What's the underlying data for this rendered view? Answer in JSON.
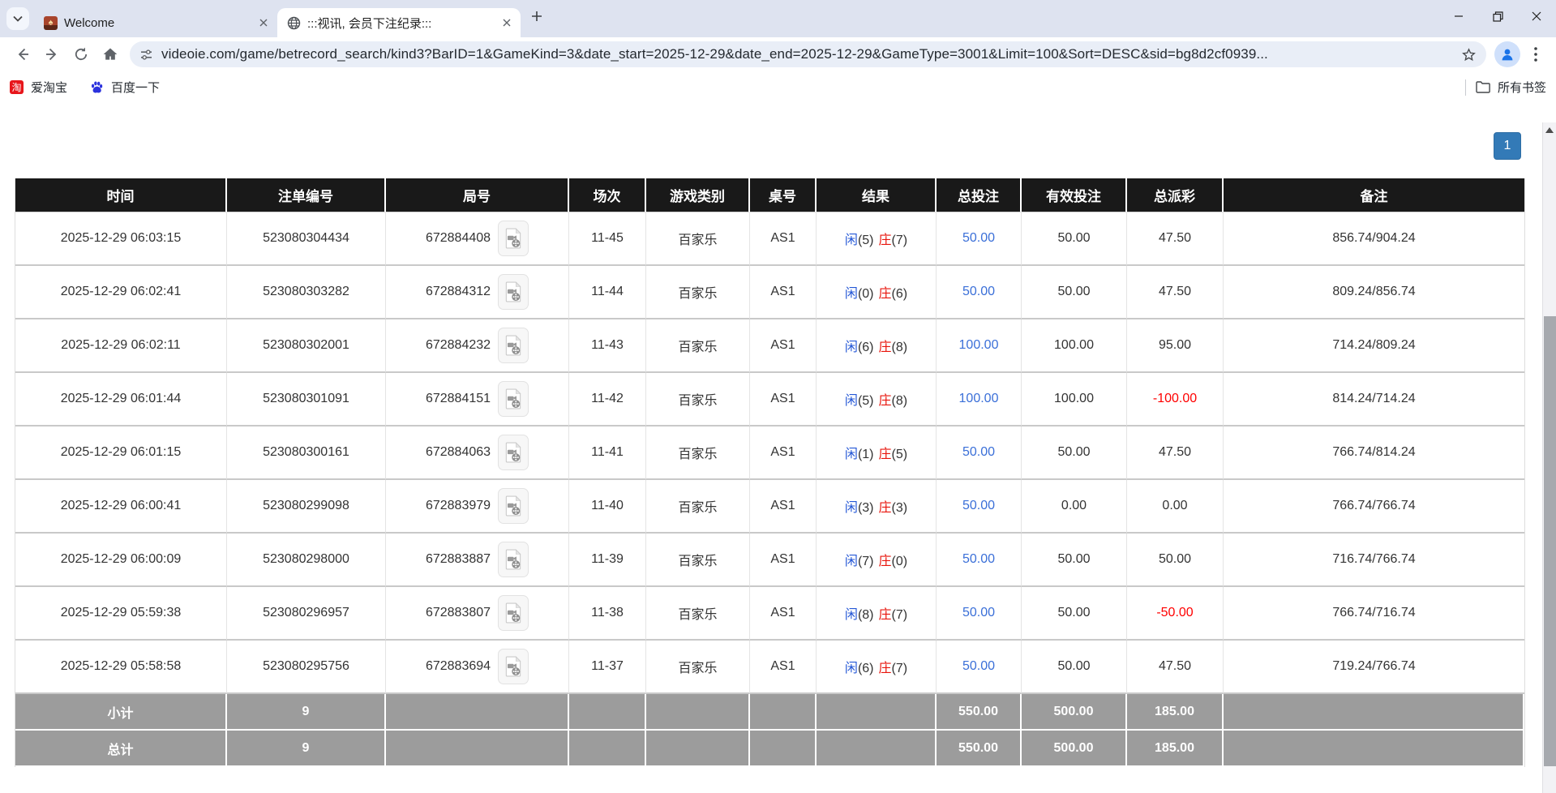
{
  "browser": {
    "tabs": [
      {
        "title": "Welcome"
      },
      {
        "title": ":::视讯, 会员下注纪录:::"
      }
    ],
    "url": "videoie.com/game/betrecord_search/kind3?BarID=1&GameKind=3&date_start=2025-12-29&date_end=2025-12-29&GameType=3001&Limit=100&Sort=DESC&sid=bg8d2cf0939...",
    "bookmarks_bar": {
      "items": [
        {
          "label": "爱淘宝",
          "glyph": "淘"
        },
        {
          "label": "百度一下"
        }
      ],
      "all_bookmarks_label": "所有书签"
    }
  },
  "page": {
    "pagination": {
      "current_page": "1"
    },
    "table": {
      "headers": [
        "时间",
        "注单编号",
        "局号",
        "场次",
        "游戏类别",
        "桌号",
        "结果",
        "总投注",
        "有效投注",
        "总派彩",
        "备注"
      ],
      "result_labels": {
        "player": "闲",
        "banker": "庄"
      },
      "rows": [
        {
          "time": "2025-12-29 06:03:15",
          "bet_id": "523080304434",
          "round": "672884408",
          "session": "11-45",
          "game": "百家乐",
          "table": "AS1",
          "player": "5",
          "banker": "7",
          "total_bet": "50.00",
          "valid_bet": "50.00",
          "payout": "47.50",
          "remark": "856.74/904.24"
        },
        {
          "time": "2025-12-29 06:02:41",
          "bet_id": "523080303282",
          "round": "672884312",
          "session": "11-44",
          "game": "百家乐",
          "table": "AS1",
          "player": "0",
          "banker": "6",
          "total_bet": "50.00",
          "valid_bet": "50.00",
          "payout": "47.50",
          "remark": "809.24/856.74"
        },
        {
          "time": "2025-12-29 06:02:11",
          "bet_id": "523080302001",
          "round": "672884232",
          "session": "11-43",
          "game": "百家乐",
          "table": "AS1",
          "player": "6",
          "banker": "8",
          "total_bet": "100.00",
          "valid_bet": "100.00",
          "payout": "95.00",
          "remark": "714.24/809.24"
        },
        {
          "time": "2025-12-29 06:01:44",
          "bet_id": "523080301091",
          "round": "672884151",
          "session": "11-42",
          "game": "百家乐",
          "table": "AS1",
          "player": "5",
          "banker": "8",
          "total_bet": "100.00",
          "valid_bet": "100.00",
          "payout": "-100.00",
          "remark": "814.24/714.24"
        },
        {
          "time": "2025-12-29 06:01:15",
          "bet_id": "523080300161",
          "round": "672884063",
          "session": "11-41",
          "game": "百家乐",
          "table": "AS1",
          "player": "1",
          "banker": "5",
          "total_bet": "50.00",
          "valid_bet": "50.00",
          "payout": "47.50",
          "remark": "766.74/814.24"
        },
        {
          "time": "2025-12-29 06:00:41",
          "bet_id": "523080299098",
          "round": "672883979",
          "session": "11-40",
          "game": "百家乐",
          "table": "AS1",
          "player": "3",
          "banker": "3",
          "total_bet": "50.00",
          "valid_bet": "0.00",
          "payout": "0.00",
          "remark": "766.74/766.74"
        },
        {
          "time": "2025-12-29 06:00:09",
          "bet_id": "523080298000",
          "round": "672883887",
          "session": "11-39",
          "game": "百家乐",
          "table": "AS1",
          "player": "7",
          "banker": "0",
          "total_bet": "50.00",
          "valid_bet": "50.00",
          "payout": "50.00",
          "remark": "716.74/766.74"
        },
        {
          "time": "2025-12-29 05:59:38",
          "bet_id": "523080296957",
          "round": "672883807",
          "session": "11-38",
          "game": "百家乐",
          "table": "AS1",
          "player": "8",
          "banker": "7",
          "total_bet": "50.00",
          "valid_bet": "50.00",
          "payout": "-50.00",
          "remark": "766.74/716.74"
        },
        {
          "time": "2025-12-29 05:58:58",
          "bet_id": "523080295756",
          "round": "672883694",
          "session": "11-37",
          "game": "百家乐",
          "table": "AS1",
          "player": "6",
          "banker": "7",
          "total_bet": "50.00",
          "valid_bet": "50.00",
          "payout": "47.50",
          "remark": "719.24/766.74"
        }
      ],
      "subtotal": {
        "label": "小计",
        "count": "9",
        "total_bet": "550.00",
        "valid_bet": "500.00",
        "payout": "185.00"
      },
      "total": {
        "label": "总计",
        "count": "9",
        "total_bet": "550.00",
        "valid_bet": "500.00",
        "payout": "185.00"
      }
    }
  },
  "colors": {
    "tabstrip_bg": "#dee3f0",
    "omnibox_bg": "#e9eef7",
    "header_bg": "#191919",
    "summary_bg": "#9c9c9c",
    "page_button_blue": "#337ab7",
    "bet_link_blue": "#3a6fd8",
    "player_blue": "#2457d6",
    "banker_red": "#e8150c",
    "negative_red": "#ff0000"
  }
}
